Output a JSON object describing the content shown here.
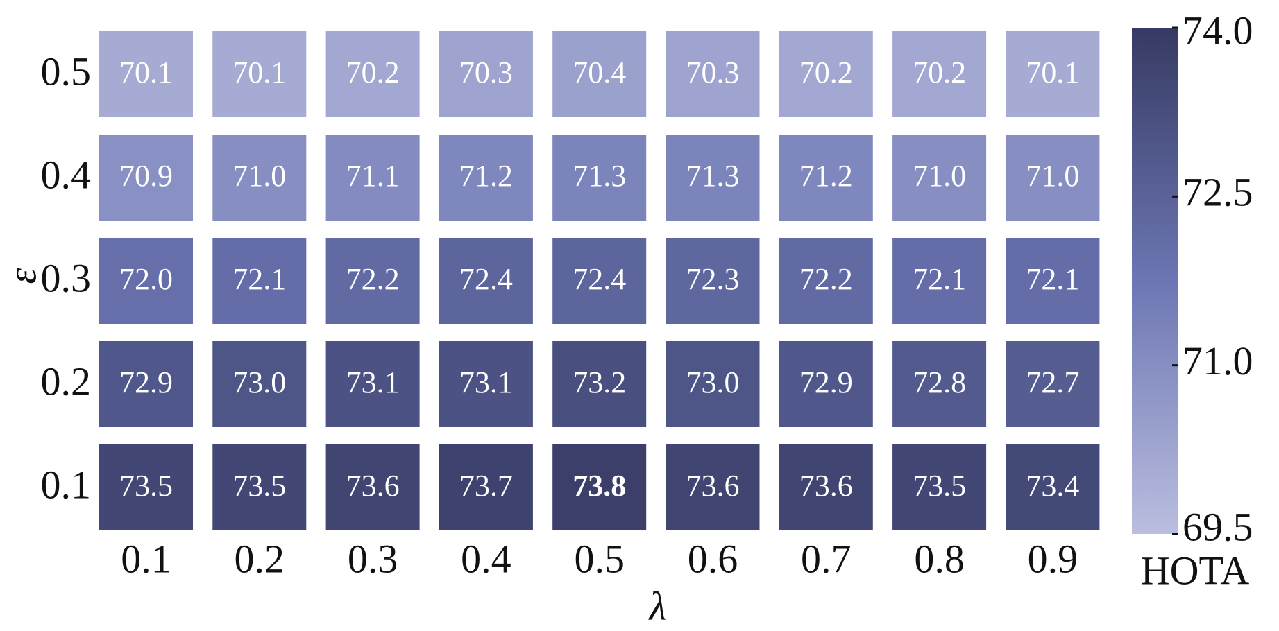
{
  "chart_data": {
    "type": "heatmap",
    "x_label": "λ",
    "y_label": "ε",
    "colorbar_label": "HOTA",
    "x_categories": [
      "0.1",
      "0.2",
      "0.3",
      "0.4",
      "0.5",
      "0.6",
      "0.7",
      "0.8",
      "0.9"
    ],
    "y_categories": [
      "0.5",
      "0.4",
      "0.3",
      "0.2",
      "0.1"
    ],
    "values": [
      [
        70.1,
        70.1,
        70.2,
        70.3,
        70.4,
        70.3,
        70.2,
        70.2,
        70.1
      ],
      [
        70.9,
        71,
        71.1,
        71.2,
        71.3,
        71.3,
        71.2,
        71,
        71
      ],
      [
        72,
        72.1,
        72.2,
        72.4,
        72.4,
        72.3,
        72.2,
        72.1,
        72.1
      ],
      [
        72.9,
        73,
        73.1,
        73.1,
        73.2,
        73,
        72.9,
        72.8,
        72.7
      ],
      [
        73.5,
        73.5,
        73.6,
        73.7,
        73.8,
        73.6,
        73.6,
        73.5,
        73.4
      ]
    ],
    "value_labels": [
      [
        "70.1",
        "70.1",
        "70.2",
        "70.3",
        "70.4",
        "70.3",
        "70.2",
        "70.2",
        "70.1"
      ],
      [
        "70.9",
        "71.0",
        "71.1",
        "71.2",
        "71.3",
        "71.3",
        "71.2",
        "71.0",
        "71.0"
      ],
      [
        "72.0",
        "72.1",
        "72.2",
        "72.4",
        "72.4",
        "72.3",
        "72.2",
        "72.1",
        "72.1"
      ],
      [
        "72.9",
        "73.0",
        "73.1",
        "73.1",
        "73.2",
        "73.0",
        "72.9",
        "72.8",
        "72.7"
      ],
      [
        "73.5",
        "73.5",
        "73.6",
        "73.7",
        "73.8",
        "73.6",
        "73.6",
        "73.5",
        "73.4"
      ]
    ],
    "clim": [
      69.5,
      74.0
    ],
    "cticks": [
      69.5,
      {
        "value": 71,
        "label": "71.0"
      },
      72.5,
      {
        "value": 74,
        "label": "74.0"
      }
    ],
    "colormap": [
      "#babedf",
      "#6c76b3",
      "#363a63"
    ],
    "highlight_max": true
  }
}
